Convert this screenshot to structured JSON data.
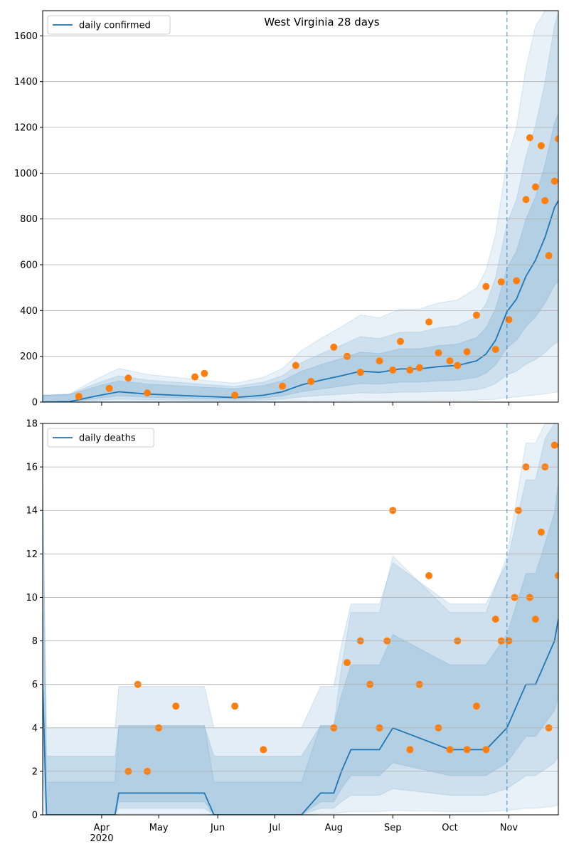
{
  "colors": {
    "line": "#1f77b4",
    "points": "#ff7f0e",
    "band": "#1f77b4",
    "grid": "#b0b0b0",
    "axis": "#000000"
  },
  "chart_data": [
    {
      "type": "line",
      "title": "West Virginia 28 days",
      "xlabel": "",
      "ylabel": "",
      "legend": "daily confirmed",
      "legend_position": "top-left",
      "grid": "horizontal",
      "x_range": [
        "2020-03-01",
        "2020-11-27"
      ],
      "ylim": [
        0,
        1710
      ],
      "yticks": [
        0,
        200,
        400,
        600,
        800,
        1000,
        1200,
        1400,
        1600
      ],
      "forecast_start": "2020-10-31",
      "model_line": {
        "x": [
          "2020-03-01",
          "2020-03-15",
          "2020-03-28",
          "2020-04-10",
          "2020-04-25",
          "2020-05-10",
          "2020-05-25",
          "2020-06-10",
          "2020-06-25",
          "2020-07-05",
          "2020-07-15",
          "2020-07-25",
          "2020-08-05",
          "2020-08-15",
          "2020-08-25",
          "2020-09-05",
          "2020-09-15",
          "2020-09-25",
          "2020-10-05",
          "2020-10-15",
          "2020-10-20",
          "2020-10-25",
          "2020-10-31",
          "2020-11-05",
          "2020-11-10",
          "2020-11-15",
          "2020-11-20",
          "2020-11-25",
          "2020-11-27"
        ],
        "y": [
          0,
          2,
          25,
          45,
          35,
          30,
          25,
          20,
          30,
          45,
          75,
          95,
          115,
          135,
          130,
          145,
          145,
          155,
          160,
          180,
          210,
          270,
          395,
          450,
          550,
          620,
          720,
          850,
          880
        ]
      },
      "observed": {
        "x": [
          "2020-03-20",
          "2020-04-05",
          "2020-04-15",
          "2020-04-25",
          "2020-05-20",
          "2020-05-25",
          "2020-06-10",
          "2020-07-05",
          "2020-07-12",
          "2020-07-20",
          "2020-08-01",
          "2020-08-08",
          "2020-08-15",
          "2020-08-25",
          "2020-09-01",
          "2020-09-05",
          "2020-09-10",
          "2020-09-15",
          "2020-09-20",
          "2020-09-25",
          "2020-10-01",
          "2020-10-05",
          "2020-10-10",
          "2020-10-15",
          "2020-10-20",
          "2020-10-25",
          "2020-10-28",
          "2020-11-01",
          "2020-11-05",
          "2020-11-10",
          "2020-11-12",
          "2020-11-15",
          "2020-11-18",
          "2020-11-20",
          "2020-11-22",
          "2020-11-25",
          "2020-11-27"
        ],
        "y": [
          25,
          60,
          105,
          40,
          110,
          125,
          30,
          70,
          160,
          90,
          240,
          200,
          130,
          180,
          140,
          265,
          140,
          150,
          350,
          215,
          180,
          160,
          220,
          380,
          505,
          230,
          525,
          360,
          530,
          885,
          1155,
          940,
          1120,
          880,
          640,
          965,
          1150
        ]
      },
      "x_tick_labels": [
        "Apr\n2020",
        "May",
        "Jun",
        "Jul",
        "Aug",
        "Sep",
        "Oct",
        "Nov"
      ]
    },
    {
      "type": "line",
      "title": "",
      "xlabel": "",
      "ylabel": "",
      "legend": "daily deaths",
      "legend_position": "top-left",
      "grid": "horizontal",
      "x_range": [
        "2020-03-01",
        "2020-11-27"
      ],
      "ylim": [
        0,
        18
      ],
      "yticks": [
        0,
        2,
        4,
        6,
        8,
        10,
        12,
        14,
        16,
        18
      ],
      "forecast_start": "2020-10-31",
      "model_line": {
        "x": [
          "2020-03-01",
          "2020-03-03",
          "2020-04-08",
          "2020-04-10",
          "2020-05-25",
          "2020-05-30",
          "2020-06-01",
          "2020-07-15",
          "2020-07-25",
          "2020-08-01",
          "2020-08-05",
          "2020-08-10",
          "2020-08-25",
          "2020-09-01",
          "2020-10-01",
          "2020-10-20",
          "2020-10-31",
          "2020-11-05",
          "2020-11-10",
          "2020-11-15",
          "2020-11-20",
          "2020-11-25",
          "2020-11-27"
        ],
        "y": [
          6,
          0,
          0,
          1,
          1,
          0,
          0,
          0,
          1,
          1,
          2,
          3,
          3,
          4,
          3,
          3,
          4,
          5,
          6,
          6,
          7,
          8,
          9
        ]
      },
      "observed": {
        "x": [
          "2020-04-15",
          "2020-04-20",
          "2020-04-25",
          "2020-05-01",
          "2020-05-10",
          "2020-06-10",
          "2020-06-25",
          "2020-08-01",
          "2020-08-08",
          "2020-08-15",
          "2020-08-20",
          "2020-08-25",
          "2020-08-29",
          "2020-09-01",
          "2020-09-10",
          "2020-09-15",
          "2020-09-20",
          "2020-09-25",
          "2020-10-01",
          "2020-10-05",
          "2020-10-10",
          "2020-10-15",
          "2020-10-20",
          "2020-10-25",
          "2020-10-28",
          "2020-11-01",
          "2020-11-04",
          "2020-11-06",
          "2020-11-10",
          "2020-11-12",
          "2020-11-15",
          "2020-11-18",
          "2020-11-20",
          "2020-11-22",
          "2020-11-25",
          "2020-11-27"
        ],
        "y": [
          2,
          6,
          2,
          4,
          5,
          5,
          3,
          4,
          7,
          8,
          6,
          4,
          8,
          14,
          3,
          6,
          11,
          4,
          3,
          8,
          3,
          5,
          3,
          9,
          8,
          8,
          10,
          14,
          16,
          10,
          9,
          13,
          16,
          4,
          17,
          11
        ]
      },
      "x_tick_labels": [
        "Apr\n2020",
        "May",
        "Jun",
        "Jul",
        "Aug",
        "Sep",
        "Oct",
        "Nov"
      ]
    }
  ]
}
